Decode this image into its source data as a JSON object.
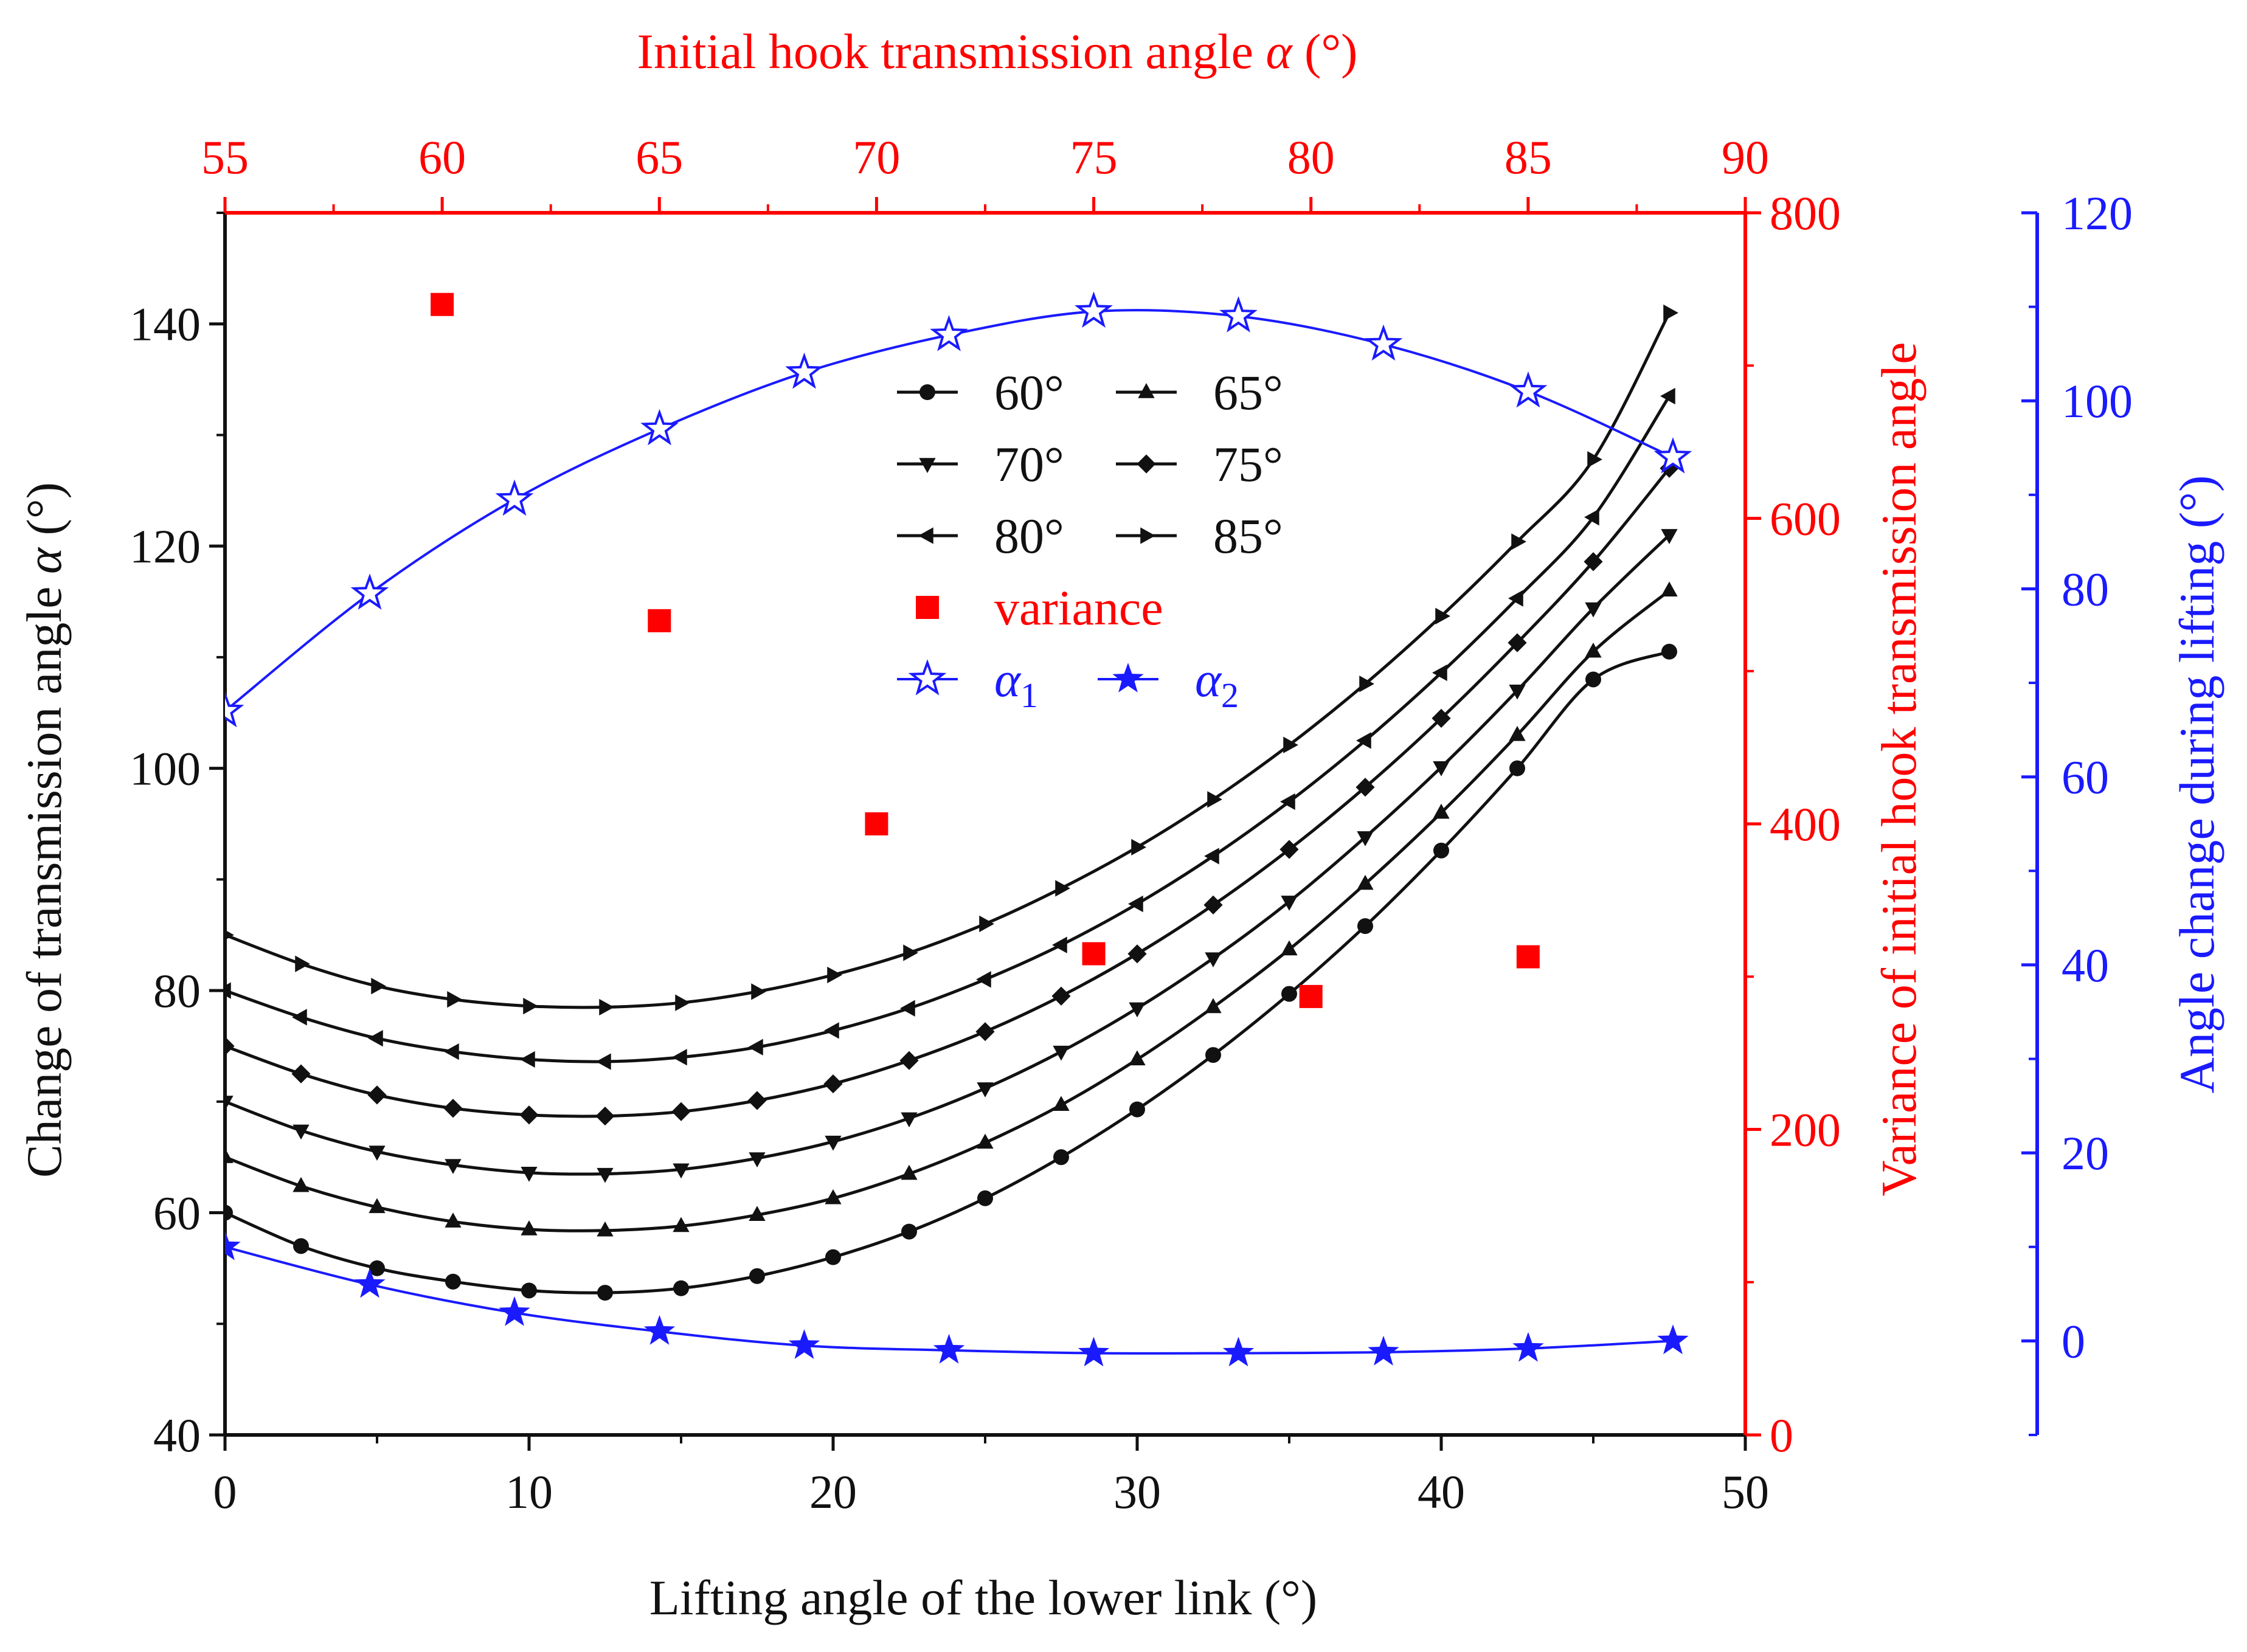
{
  "chart_data": {
    "type": "line",
    "title": "",
    "xlabel": "Lifting angle of the lower link (°)",
    "xlim": [
      0,
      50
    ],
    "xticks": [
      0,
      10,
      20,
      30,
      40,
      50
    ],
    "ylabel_prefix": "Change of transmission angle ",
    "ylabel_symbol": "α",
    "ylabel_suffix": " (°)",
    "ylim": [
      40,
      150
    ],
    "yticks": [
      40,
      60,
      80,
      100,
      120,
      140
    ],
    "x2label_prefix": "Initial hook transmission angle ",
    "x2label_symbol": "α",
    "x2label_suffix": " (°)",
    "x2lim": [
      55,
      90
    ],
    "x2ticks": [
      55,
      60,
      65,
      70,
      75,
      80,
      85,
      90
    ],
    "y2label": "Variance of initial hook transmission angle",
    "y2lim": [
      0,
      800
    ],
    "y2ticks": [
      0,
      200,
      400,
      600,
      800
    ],
    "y3label": "Angle change during lifting (°)",
    "y3lim": [
      -10,
      120
    ],
    "y3ticks": [
      0,
      20,
      40,
      60,
      80,
      100,
      120
    ],
    "colors": {
      "black": "#111111",
      "red": "#ff0000",
      "blue": "#1a1aff"
    },
    "series": [
      {
        "name": "60°",
        "marker": "circle",
        "axis": "left",
        "color": "#111111",
        "x": [
          0,
          2.5,
          5,
          7.5,
          10,
          12.5,
          15,
          17.5,
          20,
          22.5,
          25,
          27.5,
          30,
          32.5,
          35,
          37.5,
          40,
          42.5,
          45,
          47.5
        ],
        "values": [
          60,
          57,
          55,
          53.8,
          53,
          52.8,
          53.2,
          54.3,
          56,
          58.3,
          61.3,
          65,
          69.3,
          74.2,
          79.7,
          85.8,
          92.6,
          100,
          108,
          110.5
        ]
      },
      {
        "name": "65°",
        "marker": "triangle-up",
        "axis": "left",
        "color": "#111111",
        "x": [
          0,
          2.5,
          5,
          7.5,
          10,
          12.5,
          15,
          17.5,
          20,
          22.5,
          25,
          27.5,
          30,
          32.5,
          35,
          37.5,
          40,
          42.5,
          45,
          47.5
        ],
        "values": [
          65,
          62.4,
          60.5,
          59.2,
          58.5,
          58.4,
          58.8,
          59.8,
          61.3,
          63.5,
          66.3,
          69.7,
          73.8,
          78.5,
          83.7,
          89.6,
          96,
          103,
          110.5,
          116
        ]
      },
      {
        "name": "70°",
        "marker": "triangle-down",
        "axis": "left",
        "color": "#111111",
        "x": [
          0,
          2.5,
          5,
          7.5,
          10,
          12.5,
          15,
          17.5,
          20,
          22.5,
          25,
          27.5,
          30,
          32.5,
          35,
          37.5,
          40,
          42.5,
          45,
          47.5
        ],
        "values": [
          70,
          67.4,
          65.5,
          64.3,
          63.6,
          63.5,
          63.9,
          64.9,
          66.4,
          68.5,
          71.2,
          74.5,
          78.4,
          82.9,
          88,
          93.8,
          100.1,
          107,
          114.4,
          121
        ]
      },
      {
        "name": "75°",
        "marker": "diamond",
        "axis": "left",
        "color": "#111111",
        "x": [
          0,
          2.5,
          5,
          7.5,
          10,
          12.5,
          15,
          17.5,
          20,
          22.5,
          25,
          27.5,
          30,
          32.5,
          35,
          37.5,
          40,
          42.5,
          45,
          47.5
        ],
        "values": [
          75,
          72.5,
          70.6,
          69.4,
          68.8,
          68.7,
          69.1,
          70.1,
          71.6,
          73.7,
          76.3,
          79.5,
          83.3,
          87.7,
          92.7,
          98.3,
          104.5,
          111.3,
          118.6,
          127
        ]
      },
      {
        "name": "80°",
        "marker": "triangle-left",
        "axis": "left",
        "color": "#111111",
        "x": [
          0,
          2.5,
          5,
          7.5,
          10,
          12.5,
          15,
          17.5,
          20,
          22.5,
          25,
          27.5,
          30,
          32.5,
          35,
          37.5,
          40,
          42.5,
          45,
          47.5
        ],
        "values": [
          80,
          77.6,
          75.7,
          74.5,
          73.8,
          73.6,
          74,
          74.9,
          76.4,
          78.4,
          81,
          84.1,
          87.8,
          92.1,
          97,
          102.5,
          108.6,
          115.3,
          122.6,
          133.5
        ]
      },
      {
        "name": "85°",
        "marker": "triangle-right",
        "axis": "left",
        "color": "#111111",
        "x": [
          0,
          2.5,
          5,
          7.5,
          10,
          12.5,
          15,
          17.5,
          20,
          22.5,
          25,
          27.5,
          30,
          32.5,
          35,
          37.5,
          40,
          42.5,
          45,
          47.5
        ],
        "values": [
          85,
          82.4,
          80.4,
          79.2,
          78.6,
          78.5,
          78.9,
          79.9,
          81.4,
          83.4,
          86,
          89.2,
          92.9,
          97.2,
          102.1,
          107.6,
          113.7,
          120.4,
          127.8,
          141
        ]
      },
      {
        "name": "variance",
        "marker": "square",
        "axis": "right-red",
        "color": "#ff0000",
        "x": [
          60,
          65,
          70,
          75,
          80,
          85
        ],
        "values": [
          740,
          533,
          400,
          315,
          287,
          313
        ]
      },
      {
        "name": "α1",
        "legend_symbol": "α",
        "legend_sub": "1",
        "marker": "star-open",
        "axis": "right-blue",
        "color": "#1a1aff",
        "x": [
          0,
          4.76,
          9.52,
          14.29,
          19.05,
          23.81,
          28.57,
          33.33,
          38.1,
          42.86,
          47.62
        ],
        "values": [
          67,
          79.5,
          89.5,
          97,
          103,
          107,
          109.5,
          109,
          106,
          101,
          94
        ]
      },
      {
        "name": "α2",
        "legend_symbol": "α",
        "legend_sub": "2",
        "marker": "star-filled",
        "axis": "right-blue",
        "color": "#1a1aff",
        "x": [
          0,
          4.76,
          9.52,
          14.29,
          19.05,
          23.81,
          28.57,
          33.33,
          38.1,
          42.86,
          47.62
        ],
        "values": [
          10,
          6,
          3,
          1,
          -0.5,
          -1,
          -1.3,
          -1.3,
          -1.2,
          -0.8,
          0
        ]
      }
    ]
  }
}
